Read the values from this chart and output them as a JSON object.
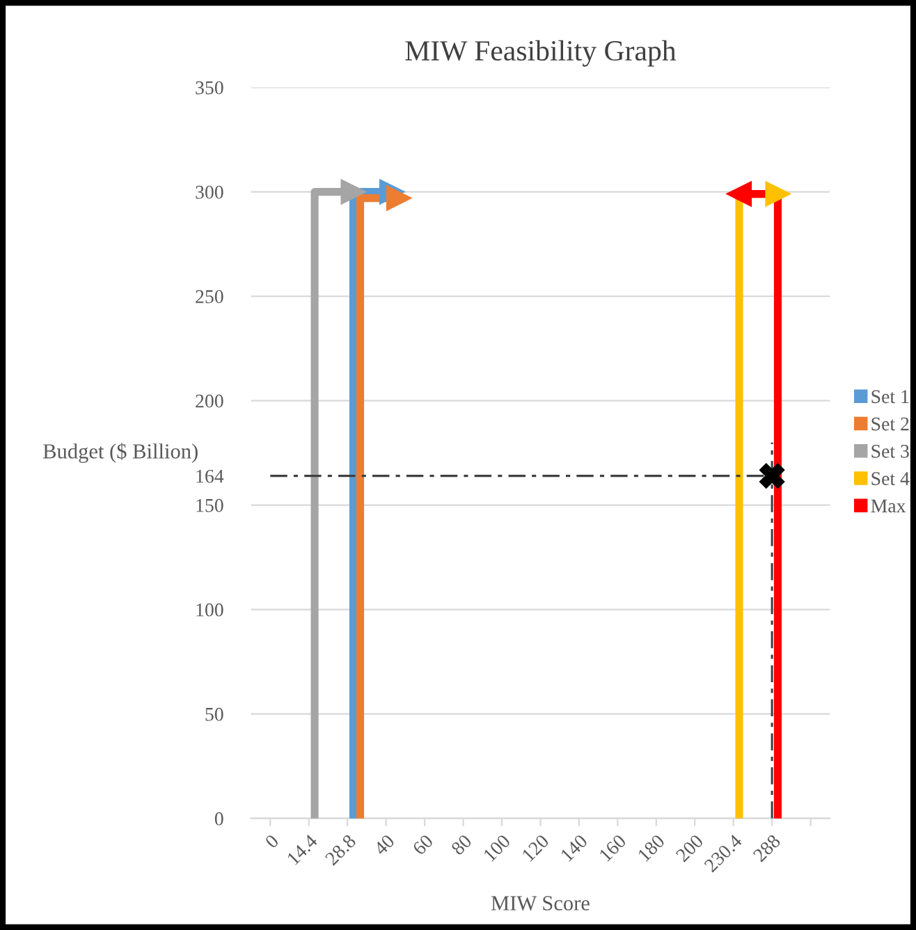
{
  "chart_data": {
    "type": "line",
    "title": "MIW Feasibility Graph",
    "xlabel": "MIW Score",
    "ylabel": "Budget ($ Billion)",
    "categories": [
      "0",
      "14.4",
      "28.8",
      "40",
      "60",
      "80",
      "100",
      "120",
      "140",
      "160",
      "180",
      "200",
      "230.4",
      "288",
      null
    ],
    "ylim": [
      0,
      350
    ],
    "yticks": [
      0,
      50,
      100,
      150,
      {
        "value": 164,
        "label": "164"
      },
      200,
      250,
      300,
      350
    ],
    "grid": "y",
    "legend": "right",
    "marker": "none",
    "series": [
      {
        "name": "Set 1",
        "color": "#5b9bd5",
        "x": [
          "28.8",
          "28.8",
          "40"
        ],
        "values": [
          0,
          300,
          300
        ]
      },
      {
        "name": "Set 2",
        "color": "#ed7d31",
        "x": [
          "28.8",
          "28.8",
          "40"
        ],
        "values": [
          0,
          297,
          297
        ]
      },
      {
        "name": "Set 3",
        "color": "#a5a5a5",
        "x": [
          "14.4",
          "14.4",
          "28.8"
        ],
        "values": [
          0,
          300,
          300
        ]
      },
      {
        "name": "Set 4",
        "color": "#ffc000",
        "x": [
          "230.4",
          "230.4",
          "288"
        ],
        "values": [
          0,
          299,
          299
        ]
      },
      {
        "name": "Max",
        "color": "#ff0000",
        "x": [
          "288",
          "288",
          "230.4"
        ],
        "values": [
          0,
          299,
          299
        ]
      },
      {
        "color": "#404040",
        "x": [
          "0",
          "288"
        ],
        "values": [
          164,
          164
        ],
        "line_style": "dashed"
      },
      {
        "color": "#404040",
        "x": [
          "288",
          "288"
        ],
        "values": [
          0,
          180
        ],
        "line_style": "dashed"
      },
      {
        "type": "scatter",
        "color": "#000000",
        "marker": "cross",
        "x": [
          "288"
        ],
        "values": [
          164
        ]
      }
    ]
  }
}
